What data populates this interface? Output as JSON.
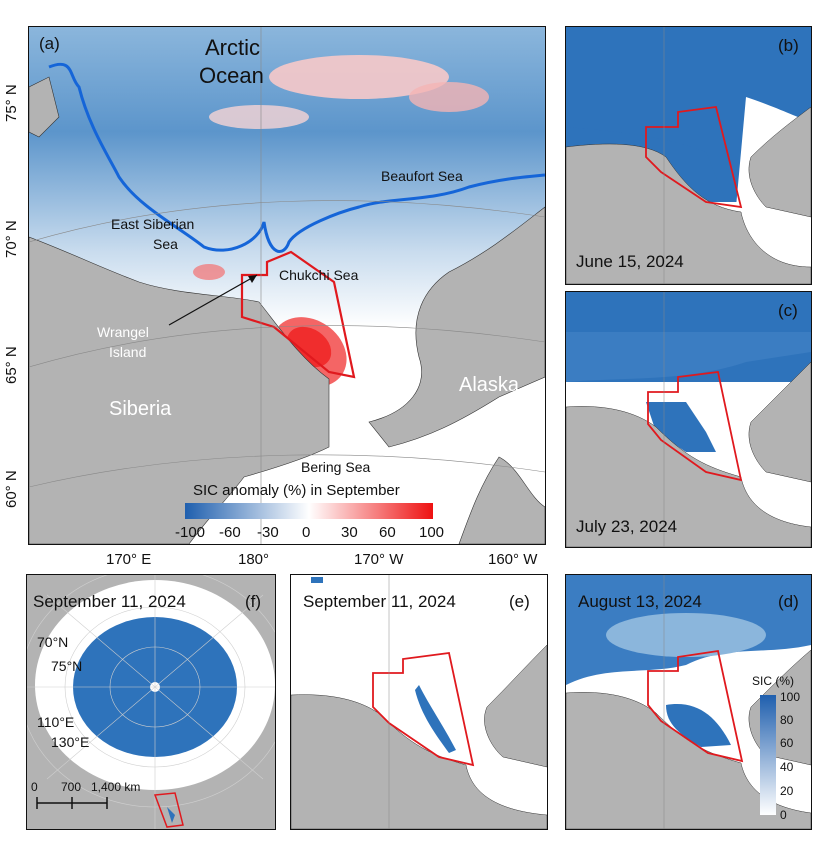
{
  "panels": {
    "a": {
      "label": "(a)",
      "places": {
        "arctic_ocean_1": "Arctic",
        "arctic_ocean_2": "Ocean",
        "beaufort": "Beaufort Sea",
        "east_siberian_1": "East Siberian",
        "east_siberian_2": "Sea",
        "chukchi": "Chukchi Sea",
        "wrangel_1": "Wrangel",
        "wrangel_2": "Island",
        "siberia": "Siberia",
        "alaska": "Alaska",
        "bering": "Bering Sea"
      },
      "lat_labels": [
        "75° N",
        "70° N",
        "65° N",
        "60° N"
      ],
      "lon_labels": [
        "170° E",
        "180°",
        "170° W",
        "160° W"
      ],
      "legend": {
        "title": "SIC anomaly (%) in September",
        "ticks": [
          "-100",
          "-60",
          "-30",
          "0",
          "30",
          "60",
          "100"
        ],
        "color_low": "#1f5fae",
        "color_mid": "#ffffff",
        "color_high": "#ee1111"
      }
    },
    "b": {
      "label": "(b)",
      "date": "June 15, 2024"
    },
    "c": {
      "label": "(c)",
      "date": "July 23, 2024"
    },
    "d": {
      "label": "(d)",
      "date": "August 13, 2024",
      "legend": {
        "title": "SIC (%)",
        "ticks": [
          "100",
          "80",
          "60",
          "40",
          "20",
          "0"
        ],
        "color_high": "#1f5fae",
        "color_low": "#ffffff"
      }
    },
    "e": {
      "label": "(e)",
      "date": "September 11, 2024"
    },
    "f": {
      "label": "(f)",
      "date": "September 11, 2024",
      "lat_labels": [
        "70°N",
        "75°N"
      ],
      "lon_labels": [
        "110°E",
        "130°E"
      ],
      "scalebar": {
        "ticks": [
          "0",
          "700",
          "1,400 km"
        ]
      }
    }
  },
  "colors": {
    "land": "#b3b3b3",
    "ice": "#2e73bb",
    "box": "#e0191e",
    "ice_edge": "#1565d8"
  }
}
